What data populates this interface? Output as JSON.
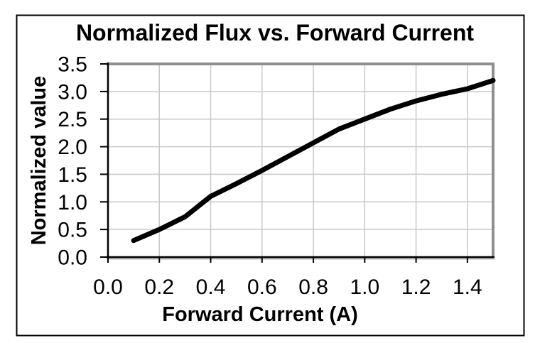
{
  "chart_data": {
    "type": "line",
    "title": "Normalized Flux vs. Forward Current",
    "xlabel": "Forward Current (A)",
    "ylabel": "Normalized value",
    "xlim": [
      0,
      1.5
    ],
    "ylim": [
      0,
      3.5
    ],
    "grid": true,
    "legend_position": "none",
    "x_tick_labels": [
      "0.0",
      "0.2",
      "0.4",
      "0.6",
      "0.8",
      "1.0",
      "1.2",
      "1.4"
    ],
    "x_tick_values": [
      0.0,
      0.2,
      0.4,
      0.6,
      0.8,
      1.0,
      1.2,
      1.4
    ],
    "y_tick_labels": [
      "0.0",
      "0.5",
      "1.0",
      "1.5",
      "2.0",
      "2.5",
      "3.0",
      "3.5"
    ],
    "y_tick_values": [
      0.0,
      0.5,
      1.0,
      1.5,
      2.0,
      2.5,
      3.0,
      3.5
    ],
    "series": [
      {
        "name": "Normalized Flux",
        "x": [
          0.1,
          0.2,
          0.3,
          0.4,
          0.5,
          0.6,
          0.7,
          0.8,
          0.9,
          1.0,
          1.1,
          1.2,
          1.3,
          1.4,
          1.5
        ],
        "y": [
          0.3,
          0.5,
          0.73,
          1.1,
          1.33,
          1.57,
          1.82,
          2.07,
          2.32,
          2.5,
          2.68,
          2.83,
          2.95,
          3.05,
          3.2
        ],
        "color": "#000000",
        "line_width": 7
      }
    ],
    "colors": {
      "background": "#ffffff",
      "text": "#000000",
      "gridline": "#c9c9c9",
      "plot_frame": "#8f8f8f",
      "axis": "#000000",
      "outer_border": "#000000"
    }
  }
}
